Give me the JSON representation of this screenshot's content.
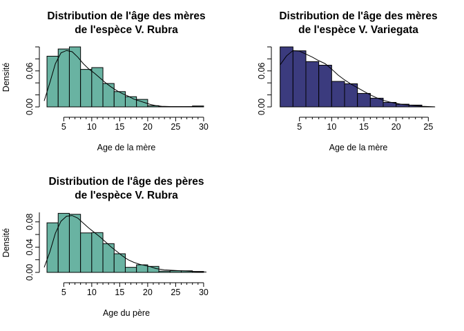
{
  "chart_data": [
    {
      "type": "bar",
      "title_line1": "Distribution de l'âge des mères",
      "title_line2": "de l'espèce V. Rubra",
      "xlabel": "Age de la mère",
      "ylabel": "Densité",
      "xlim": [
        1.5,
        31
      ],
      "ylim": [
        0,
        0.1
      ],
      "xticks": [
        5,
        10,
        15,
        20,
        25,
        30
      ],
      "yticks": [
        0.0,
        0.06
      ],
      "ytick_labels": [
        "0.00",
        "0.06"
      ],
      "bar_color": "#69b3a2",
      "bins": [
        {
          "x0": 2,
          "x1": 4,
          "y": 0.0845
        },
        {
          "x0": 4,
          "x1": 6,
          "y": 0.0965
        },
        {
          "x0": 6,
          "x1": 8,
          "y": 0.1
        },
        {
          "x0": 8,
          "x1": 10,
          "y": 0.0625
        },
        {
          "x0": 10,
          "x1": 12,
          "y": 0.0655
        },
        {
          "x0": 12,
          "x1": 14,
          "y": 0.039
        },
        {
          "x0": 14,
          "x1": 16,
          "y": 0.0255
        },
        {
          "x0": 16,
          "x1": 18,
          "y": 0.017
        },
        {
          "x0": 18,
          "x1": 20,
          "y": 0.0125
        },
        {
          "x0": 20,
          "x1": 22,
          "y": 0.002
        },
        {
          "x0": 22,
          "x1": 24,
          "y": 0.0005
        },
        {
          "x0": 24,
          "x1": 26,
          "y": 0.0005
        },
        {
          "x0": 26,
          "x1": 28,
          "y": 0.0005
        },
        {
          "x0": 28,
          "x1": 30,
          "y": 0.0015
        }
      ],
      "density": {
        "x": [
          1.5,
          2.5,
          3.5,
          4.5,
          5.5,
          6.5,
          7.5,
          8.5,
          9.5,
          10.5,
          11.5,
          12.5,
          13.5,
          14.5,
          15.5,
          16.5,
          17.5,
          18.5,
          19.5,
          20.5,
          21.5,
          22.5,
          24,
          26,
          28,
          30
        ],
        "y": [
          0.01,
          0.04,
          0.072,
          0.09,
          0.094,
          0.092,
          0.083,
          0.072,
          0.063,
          0.056,
          0.048,
          0.04,
          0.033,
          0.027,
          0.022,
          0.018,
          0.013,
          0.01,
          0.007,
          0.004,
          0.002,
          0.001,
          0.0005,
          0.0003,
          0.0005,
          0.0003
        ]
      }
    },
    {
      "type": "bar",
      "title_line1": "Distribution de l'âge des mères",
      "title_line2": "de l'espèce V. Variegata",
      "xlabel": "Age de la mère",
      "ylabel": "",
      "xlim": [
        1.5,
        27
      ],
      "ylim": [
        0,
        0.1
      ],
      "xticks": [
        5,
        10,
        15,
        20,
        25
      ],
      "yticks": [
        0.0,
        0.06
      ],
      "ytick_labels": [
        "0.00",
        "0.06"
      ],
      "bar_color": "#3b3b7e",
      "bins": [
        {
          "x0": 2,
          "x1": 4,
          "y": 0.1
        },
        {
          "x0": 4,
          "x1": 6,
          "y": 0.0935
        },
        {
          "x0": 6,
          "x1": 8,
          "y": 0.0755
        },
        {
          "x0": 8,
          "x1": 10,
          "y": 0.0695
        },
        {
          "x0": 10,
          "x1": 12,
          "y": 0.0425
        },
        {
          "x0": 12,
          "x1": 14,
          "y": 0.0385
        },
        {
          "x0": 14,
          "x1": 16,
          "y": 0.0225
        },
        {
          "x0": 16,
          "x1": 18,
          "y": 0.0145
        },
        {
          "x0": 18,
          "x1": 20,
          "y": 0.0075
        },
        {
          "x0": 20,
          "x1": 22,
          "y": 0.0045
        },
        {
          "x0": 22,
          "x1": 24,
          "y": 0.003
        },
        {
          "x0": 24,
          "x1": 26,
          "y": 0
        }
      ],
      "density": {
        "x": [
          2,
          3,
          4,
          5,
          6,
          7,
          8,
          9,
          10,
          11,
          12,
          13,
          14,
          15,
          16,
          17,
          18,
          19,
          20,
          21,
          22,
          23,
          24,
          25,
          26
        ],
        "y": [
          0.07,
          0.085,
          0.094,
          0.093,
          0.088,
          0.083,
          0.077,
          0.072,
          0.063,
          0.053,
          0.045,
          0.038,
          0.032,
          0.026,
          0.02,
          0.015,
          0.011,
          0.008,
          0.006,
          0.004,
          0.003,
          0.002,
          0.001,
          0.0005,
          0.0002
        ]
      }
    },
    {
      "type": "bar",
      "title_line1": "Distribution de l'âge des pères",
      "title_line2": "de l'espèce V. Rubra",
      "xlabel": "Age du père",
      "ylabel": "Densité",
      "xlim": [
        1.5,
        31
      ],
      "ylim": [
        0,
        0.095
      ],
      "xticks": [
        5,
        10,
        15,
        20,
        25,
        30
      ],
      "yticks": [
        0.0,
        0.04,
        0.08
      ],
      "ytick_labels": [
        "0.00",
        "0.04",
        "0.08"
      ],
      "bar_color": "#69b3a2",
      "bins": [
        {
          "x0": 2,
          "x1": 4,
          "y": 0.0785
        },
        {
          "x0": 4,
          "x1": 6,
          "y": 0.0935
        },
        {
          "x0": 6,
          "x1": 8,
          "y": 0.092
        },
        {
          "x0": 8,
          "x1": 10,
          "y": 0.0625
        },
        {
          "x0": 10,
          "x1": 12,
          "y": 0.063
        },
        {
          "x0": 12,
          "x1": 14,
          "y": 0.0455
        },
        {
          "x0": 14,
          "x1": 16,
          "y": 0.0295
        },
        {
          "x0": 16,
          "x1": 18,
          "y": 0.008
        },
        {
          "x0": 18,
          "x1": 20,
          "y": 0.012
        },
        {
          "x0": 20,
          "x1": 22,
          "y": 0.0095
        },
        {
          "x0": 22,
          "x1": 24,
          "y": 0.002
        },
        {
          "x0": 24,
          "x1": 26,
          "y": 0.0025
        },
        {
          "x0": 26,
          "x1": 28,
          "y": 0.0025
        },
        {
          "x0": 28,
          "x1": 30,
          "y": 0.0015
        }
      ],
      "density": {
        "x": [
          1.5,
          2.5,
          3.5,
          4.5,
          5.5,
          6.5,
          7.5,
          8.5,
          9.5,
          10.5,
          11.5,
          12.5,
          13.5,
          14.5,
          15.5,
          16.5,
          17.5,
          18.5,
          19.5,
          20.5,
          21.5,
          23,
          25,
          27,
          29,
          30.5
        ],
        "y": [
          0.008,
          0.032,
          0.062,
          0.081,
          0.089,
          0.09,
          0.086,
          0.078,
          0.07,
          0.063,
          0.056,
          0.048,
          0.04,
          0.033,
          0.026,
          0.02,
          0.016,
          0.013,
          0.011,
          0.009,
          0.006,
          0.004,
          0.003,
          0.002,
          0.001,
          0.0005
        ]
      }
    }
  ]
}
